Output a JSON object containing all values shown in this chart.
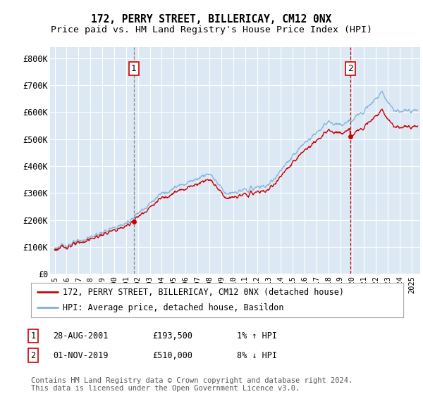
{
  "title": "172, PERRY STREET, BILLERICAY, CM12 0NX",
  "subtitle": "Price paid vs. HM Land Registry's House Price Index (HPI)",
  "ylabel_ticks": [
    "£0",
    "£100K",
    "£200K",
    "£300K",
    "£400K",
    "£500K",
    "£600K",
    "£700K",
    "£800K"
  ],
  "ytick_values": [
    0,
    100000,
    200000,
    300000,
    400000,
    500000,
    600000,
    700000,
    800000
  ],
  "ylim": [
    0,
    840000
  ],
  "xlim_start": 1994.6,
  "xlim_end": 2025.7,
  "fig_bg_color": "#ffffff",
  "plot_bg_color": "#dce9f5",
  "grid_color": "#ffffff",
  "hpi_color": "#7fb0d8",
  "price_color": "#cc0000",
  "vline1_color": "#888888",
  "vline2_color": "#cc0000",
  "sale1_date": 2001.65,
  "sale1_price": 193500,
  "sale2_date": 2019.83,
  "sale2_price": 510000,
  "legend_label1": "172, PERRY STREET, BILLERICAY, CM12 0NX (detached house)",
  "legend_label2": "HPI: Average price, detached house, Basildon",
  "ann1_info": "28-AUG-2001",
  "ann1_price": "£193,500",
  "ann1_hpi": "1% ↑ HPI",
  "ann2_info": "01-NOV-2019",
  "ann2_price": "£510,000",
  "ann2_hpi": "8% ↓ HPI",
  "footer": "Contains HM Land Registry data © Crown copyright and database right 2024.\nThis data is licensed under the Open Government Licence v3.0.",
  "title_fontsize": 10.5,
  "subtitle_fontsize": 9.5,
  "tick_fontsize": 8.5,
  "legend_fontsize": 8.5,
  "ann_fontsize": 8.5,
  "footer_fontsize": 7.5
}
